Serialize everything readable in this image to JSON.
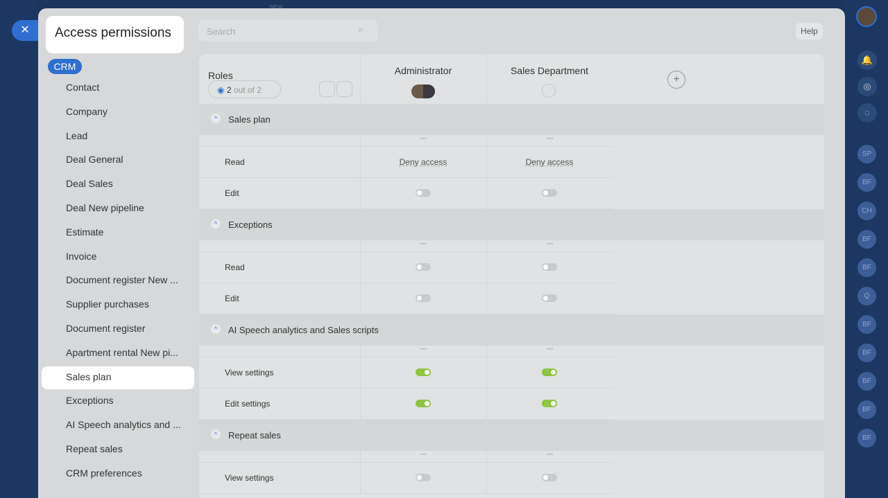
{
  "header": {
    "badge": "NEW",
    "title": "Access permissions",
    "search_placeholder": "Search",
    "help": "Help"
  },
  "menu": {
    "group": "CRM",
    "selected": 12,
    "items": [
      "Contact",
      "Company",
      "Lead",
      "Deal General",
      "Deal Sales",
      "Deal New pipeline",
      "Estimate",
      "Invoice",
      "Document register New ...",
      "Supplier purchases",
      "Document register",
      "Apartment rental New pi...",
      "Sales plan",
      "Exceptions",
      "AI Speech analytics and ...",
      "Repeat sales",
      "CRM preferences"
    ]
  },
  "table": {
    "roles_label": "Roles",
    "visible_count": "2",
    "visible_total": "out of 2",
    "columns": [
      "Administrator",
      "Sales Department"
    ],
    "sections": [
      {
        "title": "Sales plan",
        "rows": [
          {
            "label": "Read",
            "cells": [
              "Deny access",
              "Deny access"
            ]
          },
          {
            "label": "Edit",
            "cells": [
              false,
              false
            ]
          }
        ]
      },
      {
        "title": "Exceptions",
        "rows": [
          {
            "label": "Read",
            "cells": [
              false,
              false
            ]
          },
          {
            "label": "Edit",
            "cells": [
              false,
              false
            ]
          }
        ]
      },
      {
        "title": "AI Speech analytics and Sales scripts",
        "rows": [
          {
            "label": "View settings",
            "cells": [
              true,
              true
            ]
          },
          {
            "label": "Edit settings",
            "cells": [
              true,
              true
            ]
          }
        ]
      },
      {
        "title": "Repeat sales",
        "rows": [
          {
            "label": "View settings",
            "cells": [
              false,
              false
            ]
          }
        ]
      }
    ]
  },
  "sidebar": {
    "avatars": [
      "SP",
      "BF",
      "CH",
      "BF",
      "BF",
      "Q",
      "BF",
      "BF",
      "BF",
      "BF",
      "BF"
    ]
  }
}
